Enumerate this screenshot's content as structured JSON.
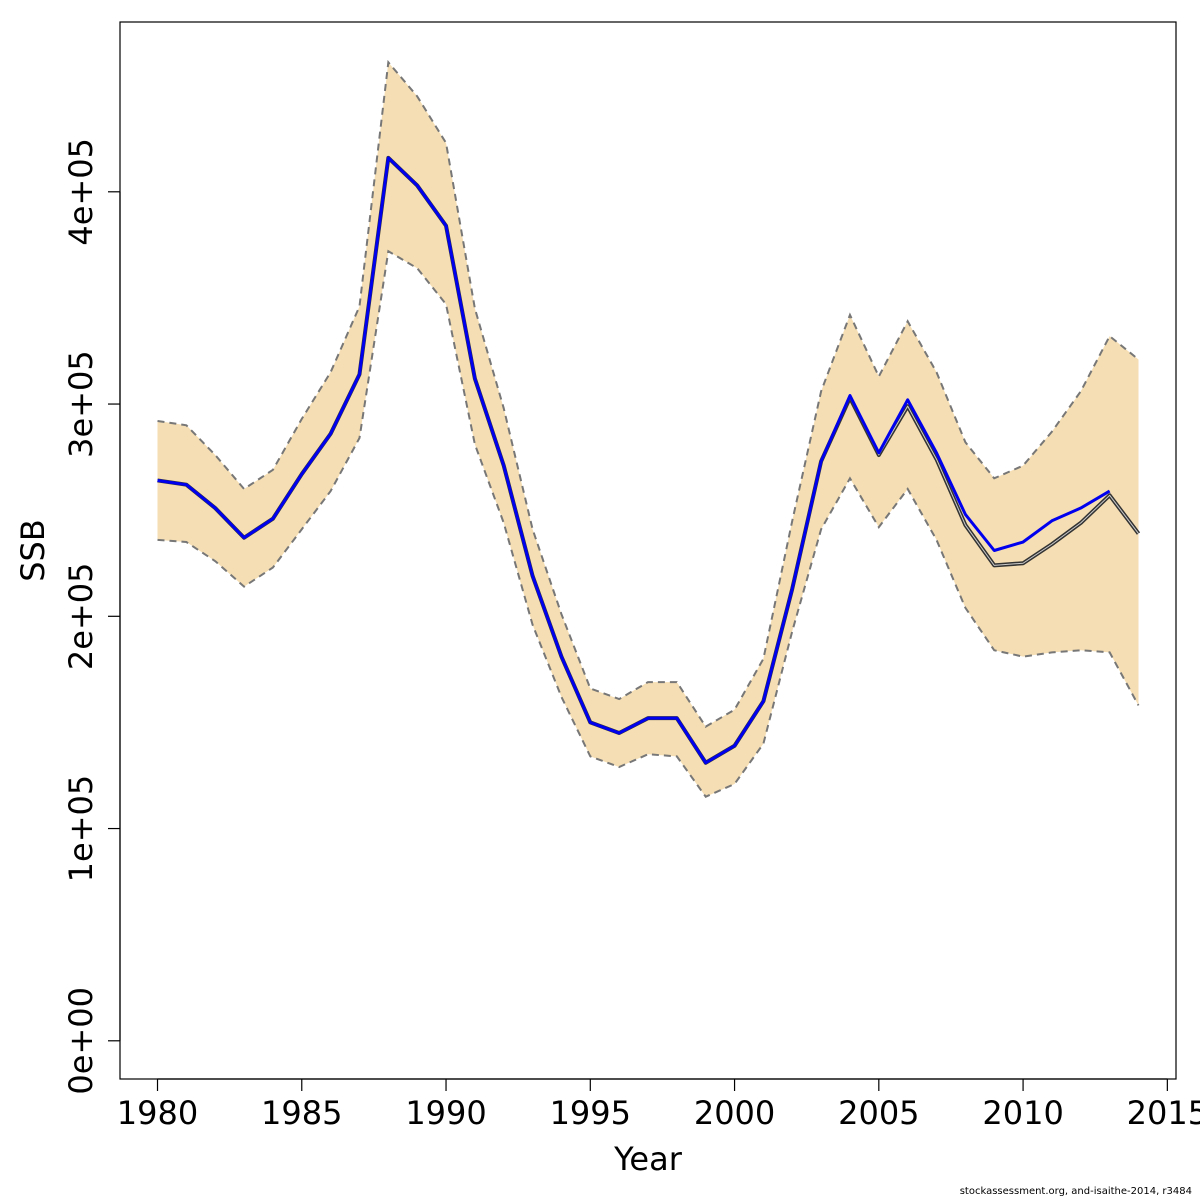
{
  "chart_data": {
    "type": "line",
    "xlabel": "Year",
    "ylabel": "SSB",
    "xlim": [
      1978.7,
      2015.3
    ],
    "ylim": [
      -18000,
      480000
    ],
    "x_ticks": [
      1980,
      1985,
      1990,
      1995,
      2000,
      2005,
      2010,
      2015
    ],
    "x_tick_labels": [
      "1980",
      "1985",
      "1990",
      "1995",
      "2000",
      "2005",
      "2010",
      "2015"
    ],
    "y_ticks": [
      0,
      100000,
      200000,
      300000,
      400000
    ],
    "y_tick_labels": [
      "0e+00",
      "1e+05",
      "2e+05",
      "3e+05",
      "4e+05"
    ],
    "grid": false,
    "band_color": "#F5DEB3",
    "band_edge_color": "#777777",
    "colors": {
      "current": "#0000ee",
      "previous": "#333333"
    },
    "years": [
      1980,
      1981,
      1982,
      1983,
      1984,
      1985,
      1986,
      1987,
      1988,
      1989,
      1990,
      1991,
      1992,
      1993,
      1994,
      1995,
      1996,
      1997,
      1998,
      1999,
      2000,
      2001,
      2002,
      2003,
      2004,
      2005,
      2006,
      2007,
      2008,
      2009,
      2010,
      2011,
      2012,
      2013,
      2014
    ],
    "band_upper": [
      292000,
      290000,
      276000,
      260000,
      269000,
      293000,
      315000,
      346000,
      461000,
      445000,
      423000,
      345000,
      298000,
      241000,
      201000,
      166000,
      161000,
      169000,
      169000,
      148000,
      156000,
      180000,
      245000,
      306000,
      342000,
      313000,
      339000,
      315000,
      282000,
      265000,
      271000,
      287000,
      306000,
      332000,
      321000
    ],
    "band_lower": [
      236000,
      235000,
      226000,
      214000,
      223000,
      241000,
      259000,
      284000,
      372000,
      364000,
      347000,
      281000,
      244000,
      196000,
      162000,
      134000,
      129000,
      135000,
      134000,
      115000,
      121000,
      140000,
      193000,
      241000,
      265000,
      242000,
      260000,
      236000,
      204000,
      184000,
      181000,
      183000,
      184000,
      183000,
      158000
    ],
    "series": [
      {
        "values": [
          264000,
          262000,
          251000,
          237000,
          246000,
          267000,
          286000,
          314000,
          416000,
          403000,
          384000,
          312000,
          271000,
          219000,
          181000,
          150000,
          145000,
          152000,
          152000,
          131000,
          139000,
          160000,
          213000,
          273000,
          304000,
          277000,
          302000,
          277000,
          248000,
          231000,
          235000,
          245000,
          251000,
          259000,
          null
        ]
      },
      {
        "values": [
          264000,
          262000,
          251000,
          237000,
          246000,
          267000,
          286000,
          314000,
          416000,
          403000,
          384000,
          312000,
          271000,
          219000,
          181000,
          150000,
          145000,
          152000,
          152000,
          131000,
          139000,
          160000,
          213000,
          273000,
          303000,
          276000,
          299000,
          274000,
          243000,
          224000,
          225000,
          234000,
          244000,
          257000,
          239000
        ]
      }
    ]
  },
  "footer": {
    "text": "stockassessment.org, and-isaithe-2014, r3484"
  }
}
